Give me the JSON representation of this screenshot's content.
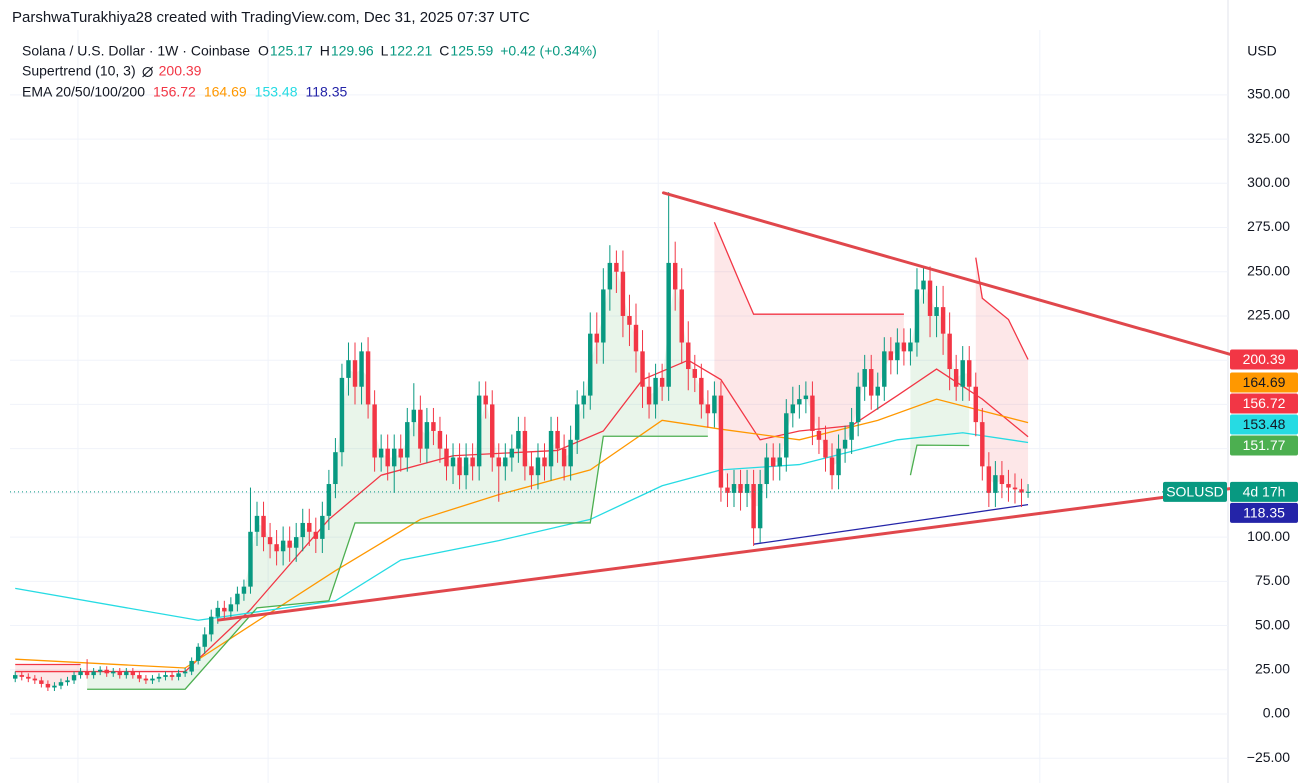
{
  "header": "ParshwaTurakhiya28 created with TradingView.com, Dec 31, 2025 07:37 UTC",
  "chart_data": {
    "type": "candlestick",
    "symbol": "Solana / U.S. Dollar · 1W · Coinbase",
    "ohlc_letters": [
      "O",
      "H",
      "L",
      "C"
    ],
    "change": "+0.42 (+0.34%)",
    "currency": "USD",
    "up_color": "#089981",
    "down_color": "#f23645",
    "open": [
      20,
      22,
      21,
      20,
      19,
      17,
      15,
      16,
      18,
      19,
      22,
      24,
      22,
      24,
      25,
      23,
      24,
      22,
      24,
      22,
      20,
      19,
      20,
      21,
      22,
      21,
      23,
      24,
      30,
      38,
      45,
      55,
      60,
      58,
      62,
      68,
      72,
      103,
      112,
      100,
      96,
      92,
      98,
      94,
      100,
      108,
      103,
      99,
      112,
      130,
      148,
      190,
      200,
      185,
      205,
      175,
      145,
      150,
      140,
      150,
      145,
      165,
      172,
      150,
      165,
      160,
      150,
      140,
      145,
      135,
      145,
      140,
      180,
      175,
      145,
      140,
      145,
      150,
      160,
      140,
      135,
      145,
      140,
      160,
      150,
      140,
      155,
      175,
      180,
      215,
      210,
      240,
      255,
      250,
      225,
      220,
      205,
      185,
      175,
      190,
      185,
      255,
      240,
      210,
      195,
      190,
      175,
      170,
      180,
      128,
      125,
      130,
      125,
      130,
      105,
      130,
      145,
      140,
      145,
      170,
      175,
      178,
      180,
      160,
      155,
      145,
      135,
      150,
      155,
      165,
      185,
      195,
      180,
      185,
      205,
      200,
      210,
      205,
      210,
      240,
      245,
      225,
      230,
      215,
      195,
      185,
      200,
      185,
      165,
      140,
      125,
      135,
      130,
      128,
      127,
      125.17
    ],
    "high": [
      24,
      24,
      23,
      22,
      21,
      19,
      18,
      20,
      21,
      24,
      26,
      31,
      26,
      27,
      27,
      26,
      26,
      26,
      26,
      24,
      22,
      22,
      23,
      24,
      24,
      25,
      26,
      32,
      40,
      49,
      59,
      64,
      64,
      66,
      72,
      76,
      128,
      120,
      120,
      108,
      104,
      106,
      106,
      108,
      116,
      116,
      111,
      120,
      138,
      156,
      198,
      210,
      210,
      210,
      213,
      183,
      158,
      158,
      158,
      158,
      173,
      187,
      180,
      173,
      173,
      168,
      158,
      153,
      153,
      153,
      153,
      188,
      188,
      183,
      153,
      153,
      158,
      168,
      168,
      148,
      153,
      153,
      168,
      168,
      158,
      163,
      183,
      188,
      227,
      227,
      252,
      265,
      262,
      262,
      237,
      232,
      217,
      193,
      198,
      198,
      295,
      267,
      252,
      222,
      203,
      198,
      183,
      188,
      188,
      136,
      138,
      138,
      138,
      138,
      138,
      153,
      153,
      153,
      178,
      185,
      186,
      188,
      188,
      168,
      163,
      153,
      158,
      163,
      173,
      193,
      203,
      203,
      193,
      213,
      213,
      218,
      218,
      218,
      252,
      253,
      253,
      242,
      242,
      227,
      203,
      208,
      208,
      193,
      173,
      148,
      143,
      143,
      138,
      136,
      133,
      129.96
    ],
    "low": [
      18,
      19,
      18,
      17,
      15,
      13,
      13,
      14,
      16,
      17,
      20,
      20,
      20,
      22,
      21,
      21,
      20,
      20,
      20,
      18,
      17,
      17,
      18,
      19,
      19,
      19,
      21,
      22,
      28,
      34,
      41,
      51,
      54,
      54,
      58,
      64,
      68,
      95,
      92,
      88,
      84,
      84,
      86,
      86,
      92,
      95,
      91,
      91,
      104,
      122,
      140,
      180,
      175,
      175,
      167,
      137,
      137,
      132,
      125,
      137,
      137,
      157,
      142,
      142,
      152,
      142,
      132,
      130,
      127,
      127,
      132,
      132,
      167,
      137,
      120,
      132,
      137,
      142,
      132,
      127,
      127,
      132,
      132,
      142,
      132,
      132,
      147,
      167,
      172,
      198,
      198,
      228,
      238,
      213,
      208,
      193,
      173,
      167,
      167,
      177,
      177,
      228,
      198,
      183,
      182,
      167,
      162,
      162,
      120,
      117,
      117,
      115,
      117,
      95,
      97,
      122,
      132,
      132,
      137,
      162,
      167,
      170,
      152,
      147,
      137,
      127,
      127,
      142,
      147,
      157,
      177,
      172,
      172,
      177,
      192,
      192,
      197,
      197,
      202,
      232,
      213,
      213,
      203,
      183,
      177,
      177,
      177,
      157,
      132,
      117,
      117,
      122,
      120,
      119,
      117,
      122.21
    ],
    "close": [
      22,
      21,
      20,
      19,
      17,
      15,
      16,
      18,
      19,
      22,
      24,
      22,
      24,
      25,
      23,
      24,
      22,
      24,
      22,
      20,
      19,
      20,
      21,
      22,
      21,
      23,
      24,
      30,
      38,
      45,
      55,
      60,
      58,
      62,
      68,
      72,
      103,
      112,
      100,
      96,
      92,
      98,
      94,
      100,
      108,
      103,
      99,
      112,
      130,
      148,
      190,
      200,
      185,
      205,
      175,
      145,
      150,
      140,
      150,
      145,
      165,
      172,
      150,
      165,
      160,
      150,
      140,
      145,
      135,
      145,
      140,
      180,
      175,
      145,
      140,
      145,
      150,
      160,
      140,
      135,
      145,
      140,
      160,
      150,
      140,
      155,
      175,
      180,
      215,
      210,
      240,
      255,
      250,
      225,
      220,
      205,
      185,
      175,
      190,
      185,
      255,
      240,
      210,
      195,
      190,
      175,
      170,
      180,
      128,
      125,
      130,
      125,
      130,
      105,
      130,
      145,
      140,
      145,
      170,
      175,
      178,
      180,
      160,
      155,
      145,
      135,
      150,
      155,
      165,
      185,
      195,
      180,
      185,
      205,
      200,
      210,
      205,
      210,
      240,
      245,
      225,
      230,
      215,
      195,
      185,
      200,
      185,
      165,
      140,
      125,
      135,
      130,
      128,
      127,
      125.17,
      125.59
    ],
    "xlim": [
      -0.8,
      185.6
    ],
    "ylim": [
      -39,
      381
    ],
    "yticks": [
      {
        "value": -25,
        "label": "−25.00"
      },
      {
        "value": 0,
        "label": "0.00"
      },
      {
        "value": 25,
        "label": "25.00"
      },
      {
        "value": 50,
        "label": "50.00"
      },
      {
        "value": 75,
        "label": "75.00"
      },
      {
        "value": 100,
        "label": "100.00"
      },
      {
        "value": 125,
        "label": "125.00"
      },
      {
        "value": 150,
        "label": "150.00"
      },
      {
        "value": 175,
        "label": "175.00"
      },
      {
        "value": 200,
        "label": "200.00"
      },
      {
        "value": 225,
        "label": "225.00"
      },
      {
        "value": 250,
        "label": "250.00"
      },
      {
        "value": 275,
        "label": "275.00"
      },
      {
        "value": 300,
        "label": "300.00"
      },
      {
        "value": 325,
        "label": "325.00"
      },
      {
        "value": 350,
        "label": "350.00"
      }
    ],
    "xgrid": [
      9.6,
      38.7,
      98.4,
      156.8
    ],
    "grid": true,
    "supertrend": {
      "label": "Supertrend (10, 3)",
      "fill_opacity": 0.12,
      "series": [
        {
          "color": "#f23645",
          "x": [
            0,
            10
          ],
          "values": [
            28,
            28
          ]
        },
        {
          "color": "#4caf50",
          "x": [
            11,
            26,
            37,
            48,
            52,
            88,
            90,
            106
          ],
          "values": [
            14,
            14,
            60,
            64,
            108,
            108,
            157,
            157
          ]
        },
        {
          "color": "#f23645",
          "x": [
            107,
            111,
            113,
            136
          ],
          "values": [
            278,
            243,
            226,
            226
          ]
        },
        {
          "color": "#4caf50",
          "x": [
            137,
            138,
            146
          ],
          "values": [
            135,
            152,
            151.77
          ]
        },
        {
          "color": "#f23645",
          "x": [
            147,
            148,
            152,
            155
          ],
          "values": [
            258,
            235,
            223,
            200.39
          ]
        }
      ]
    },
    "ema": {
      "label": "EMA 20/50/100/200",
      "series": [
        {
          "color": "#f23645",
          "x": [
            0,
            26,
            36,
            48,
            56,
            67,
            83,
            90,
            96,
            103,
            108,
            114,
            120,
            128,
            135,
            141,
            148,
            155
          ],
          "values": [
            24,
            24,
            59,
            110,
            135,
            146,
            149,
            160,
            189,
            200,
            189,
            155,
            160,
            163,
            180,
            195,
            178,
            156.72
          ]
        },
        {
          "color": "#ff9800",
          "x": [
            0,
            26,
            36,
            49,
            62,
            74,
            88,
            99,
            108,
            120,
            132,
            141,
            155
          ],
          "values": [
            31,
            26,
            50,
            81,
            110,
            124,
            138,
            166,
            161,
            155,
            166,
            178,
            164.69
          ]
        },
        {
          "color": "#26dbe3",
          "x": [
            0,
            28,
            49,
            59,
            74,
            88,
            99,
            108,
            120,
            135,
            145,
            155
          ],
          "values": [
            71,
            53,
            64,
            87,
            98,
            110,
            129,
            138,
            141,
            155,
            159,
            153.48
          ]
        },
        {
          "color": "#2424a8",
          "x": [
            113,
            130,
            145,
            155
          ],
          "values": [
            96,
            105,
            113,
            118.35
          ]
        }
      ]
    },
    "trendlines": {
      "color": "#e0474c",
      "series": [
        {
          "x": [
            99.2,
            186.8
          ],
          "values": [
            294.6,
            202.4
          ]
        },
        {
          "x": [
            31.1,
            186.8
          ],
          "values": [
            53.1,
            127.8
          ]
        }
      ]
    },
    "price_line": {
      "symbol": "SOLUSD",
      "countdown": "4d 17h"
    }
  }
}
